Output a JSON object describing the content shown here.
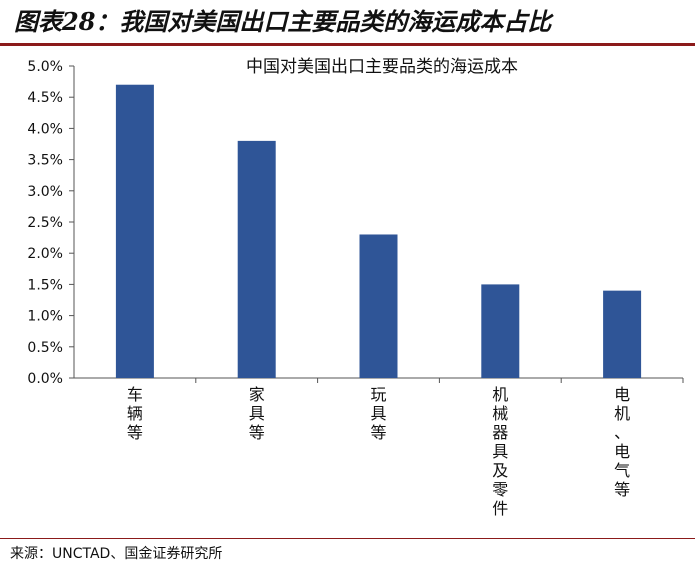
{
  "header": {
    "figure_label": "图表28：",
    "figure_title": "我国对美国出口主要品类的海运成本占比"
  },
  "chart_data": {
    "type": "bar",
    "title": "中国对美国出口主要品类的海运成本",
    "categories": [
      "车辆等",
      "家具等",
      "玩具等",
      "机械器具及零件",
      "电机、电气等"
    ],
    "values": [
      4.7,
      3.8,
      2.3,
      1.5,
      1.4
    ],
    "unit": "%",
    "yticks": [
      "0.0%",
      "0.5%",
      "1.0%",
      "1.5%",
      "2.0%",
      "2.5%",
      "3.0%",
      "3.5%",
      "4.0%",
      "4.5%",
      "5.0%"
    ],
    "ylim": [
      0,
      5
    ],
    "xlabel": "",
    "ylabel": "",
    "bar_color": "#2f5597",
    "grid": false
  },
  "footer": {
    "source_label": "来源：",
    "source_text": "UNCTAD、国金证券研究所"
  }
}
